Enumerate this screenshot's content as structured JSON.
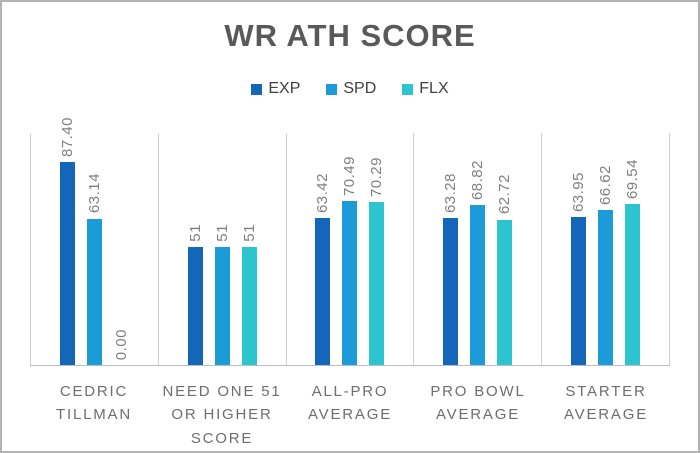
{
  "chart_data": {
    "type": "bar",
    "title": "WR ATH SCORE",
    "categories": [
      "CEDRIC TILLMAN",
      "NEED ONE 51 OR HIGHER SCORE",
      "ALL-PRO AVERAGE",
      "PRO BOWL AVERAGE",
      "STARTER AVERAGE"
    ],
    "series": [
      {
        "name": "EXP",
        "color": "#1467b8",
        "values": [
          87.4,
          51,
          63.42,
          63.28,
          63.95
        ],
        "labels": [
          "87.40",
          "51",
          "63.42",
          "63.28",
          "63.95"
        ]
      },
      {
        "name": "SPD",
        "color": "#1b9cd9",
        "values": [
          63.14,
          51,
          70.49,
          68.82,
          66.62
        ],
        "labels": [
          "63.14",
          "51",
          "70.49",
          "68.82",
          "66.62"
        ]
      },
      {
        "name": "FLX",
        "color": "#2bc4cf",
        "values": [
          0.0,
          51,
          70.29,
          62.72,
          69.54
        ],
        "labels": [
          "0.00",
          "51",
          "70.29",
          "62.72",
          "69.54"
        ]
      }
    ],
    "xlabel": "",
    "ylabel": "",
    "ylim": [
      0,
      100
    ],
    "grid": "vertical category separator lines only, no horizontal gridlines, no y-axis labels",
    "legend_position": "top",
    "value_label_style": "rotated 90deg counterclockwise, outside end of bar",
    "colors": {
      "title_text": "#595959",
      "legend_text": "#404040",
      "value_label_text": "#7f7f7f",
      "category_label_text": "#6e6e6e",
      "separator_line": "#cfcfcf",
      "axis_line": "#bdbdbd",
      "frame_border": "#b3b3b3",
      "background": "#ffffff"
    }
  }
}
